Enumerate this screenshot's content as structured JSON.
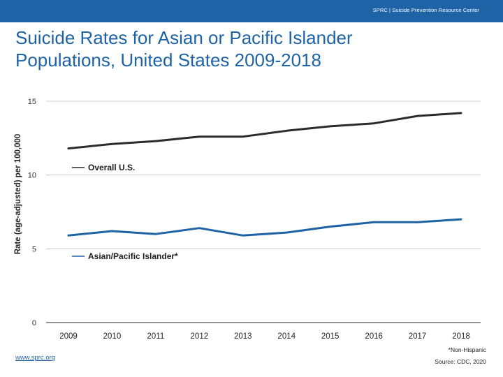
{
  "header": {
    "org_text": "SPRC  |  Suicide Prevention Resource Center"
  },
  "title": {
    "line1": "Suicide Rates for Asian or Pacific Islander",
    "line2": "Populations, United States 2009-2018"
  },
  "footer": {
    "link": "www.sprc.org",
    "footnote": "*Non-Hispanic",
    "source": "Source: CDC, 2020"
  },
  "colors": {
    "brand": "#1e63a6",
    "overall_line": "#2b2b2b",
    "api_line": "#1e63a6",
    "axis": "#555555"
  },
  "chart_data": {
    "type": "line",
    "title": "Suicide Rates for Asian or Pacific Islander Populations, United States 2009-2018",
    "xlabel": "",
    "ylabel": "Rate (age-adjusted) per 100,000",
    "x": [
      "2009",
      "2010",
      "2011",
      "2012",
      "2013",
      "2014",
      "2015",
      "2016",
      "2017",
      "2018"
    ],
    "ylim": [
      0,
      15
    ],
    "yticks": [
      0,
      5,
      10,
      15
    ],
    "grid": true,
    "series": [
      {
        "name": "Overall U.S.",
        "values": [
          11.8,
          12.1,
          12.3,
          12.6,
          12.6,
          13.0,
          13.3,
          13.5,
          14.0,
          14.2
        ]
      },
      {
        "name": "Asian/Pacific Islander*",
        "values": [
          5.9,
          6.2,
          6.0,
          6.4,
          5.9,
          6.1,
          6.5,
          6.8,
          6.8,
          7.0
        ]
      }
    ]
  }
}
